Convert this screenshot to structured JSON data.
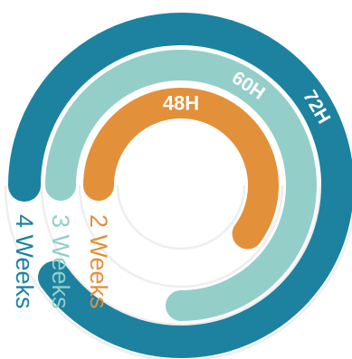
{
  "chart_data": {
    "type": "radial-bar",
    "title": "",
    "categories": [
      "2 Weeks",
      "3 Weeks",
      "4 Weeks"
    ],
    "values": [
      48,
      60,
      72
    ],
    "value_labels": [
      "48H",
      "60H",
      "72H"
    ],
    "colors": [
      "#e3903a",
      "#93cfc8",
      "#1c82a0"
    ],
    "track_color": "#eeeeee",
    "scale_max": 80
  }
}
